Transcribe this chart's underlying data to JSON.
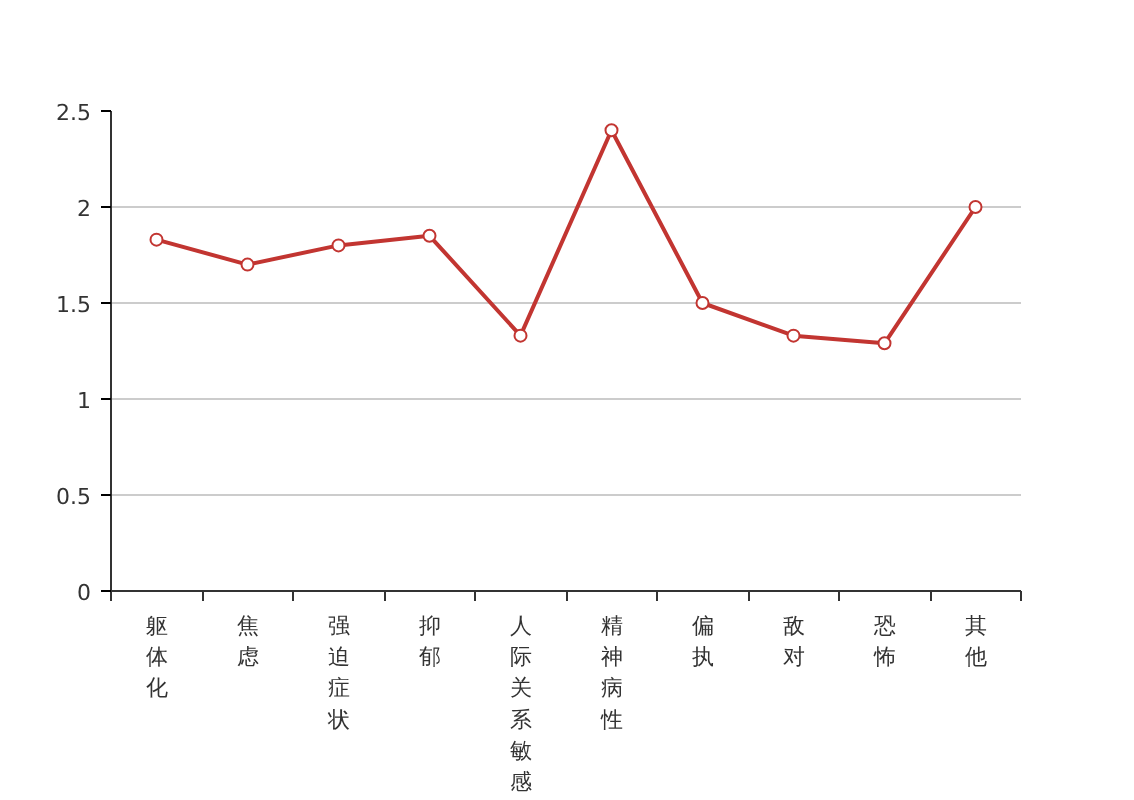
{
  "chart_data": {
    "type": "line",
    "categories": [
      "躯体化",
      "焦虑",
      "强迫症状",
      "抑郁",
      "人际关系敏感",
      "精神病性",
      "偏执",
      "敌对",
      "恐怖",
      "其他"
    ],
    "series": [
      {
        "color": "#c23531",
        "values": [
          1.83,
          1.7,
          1.8,
          1.85,
          1.33,
          2.4,
          1.5,
          1.33,
          1.29,
          2.0
        ]
      }
    ],
    "ylim": [
      0,
      2.5
    ],
    "yticks": [
      0,
      0.5,
      1,
      1.5,
      2,
      2.5
    ],
    "grid": "y",
    "marker": "circle",
    "line_style": "solid"
  }
}
